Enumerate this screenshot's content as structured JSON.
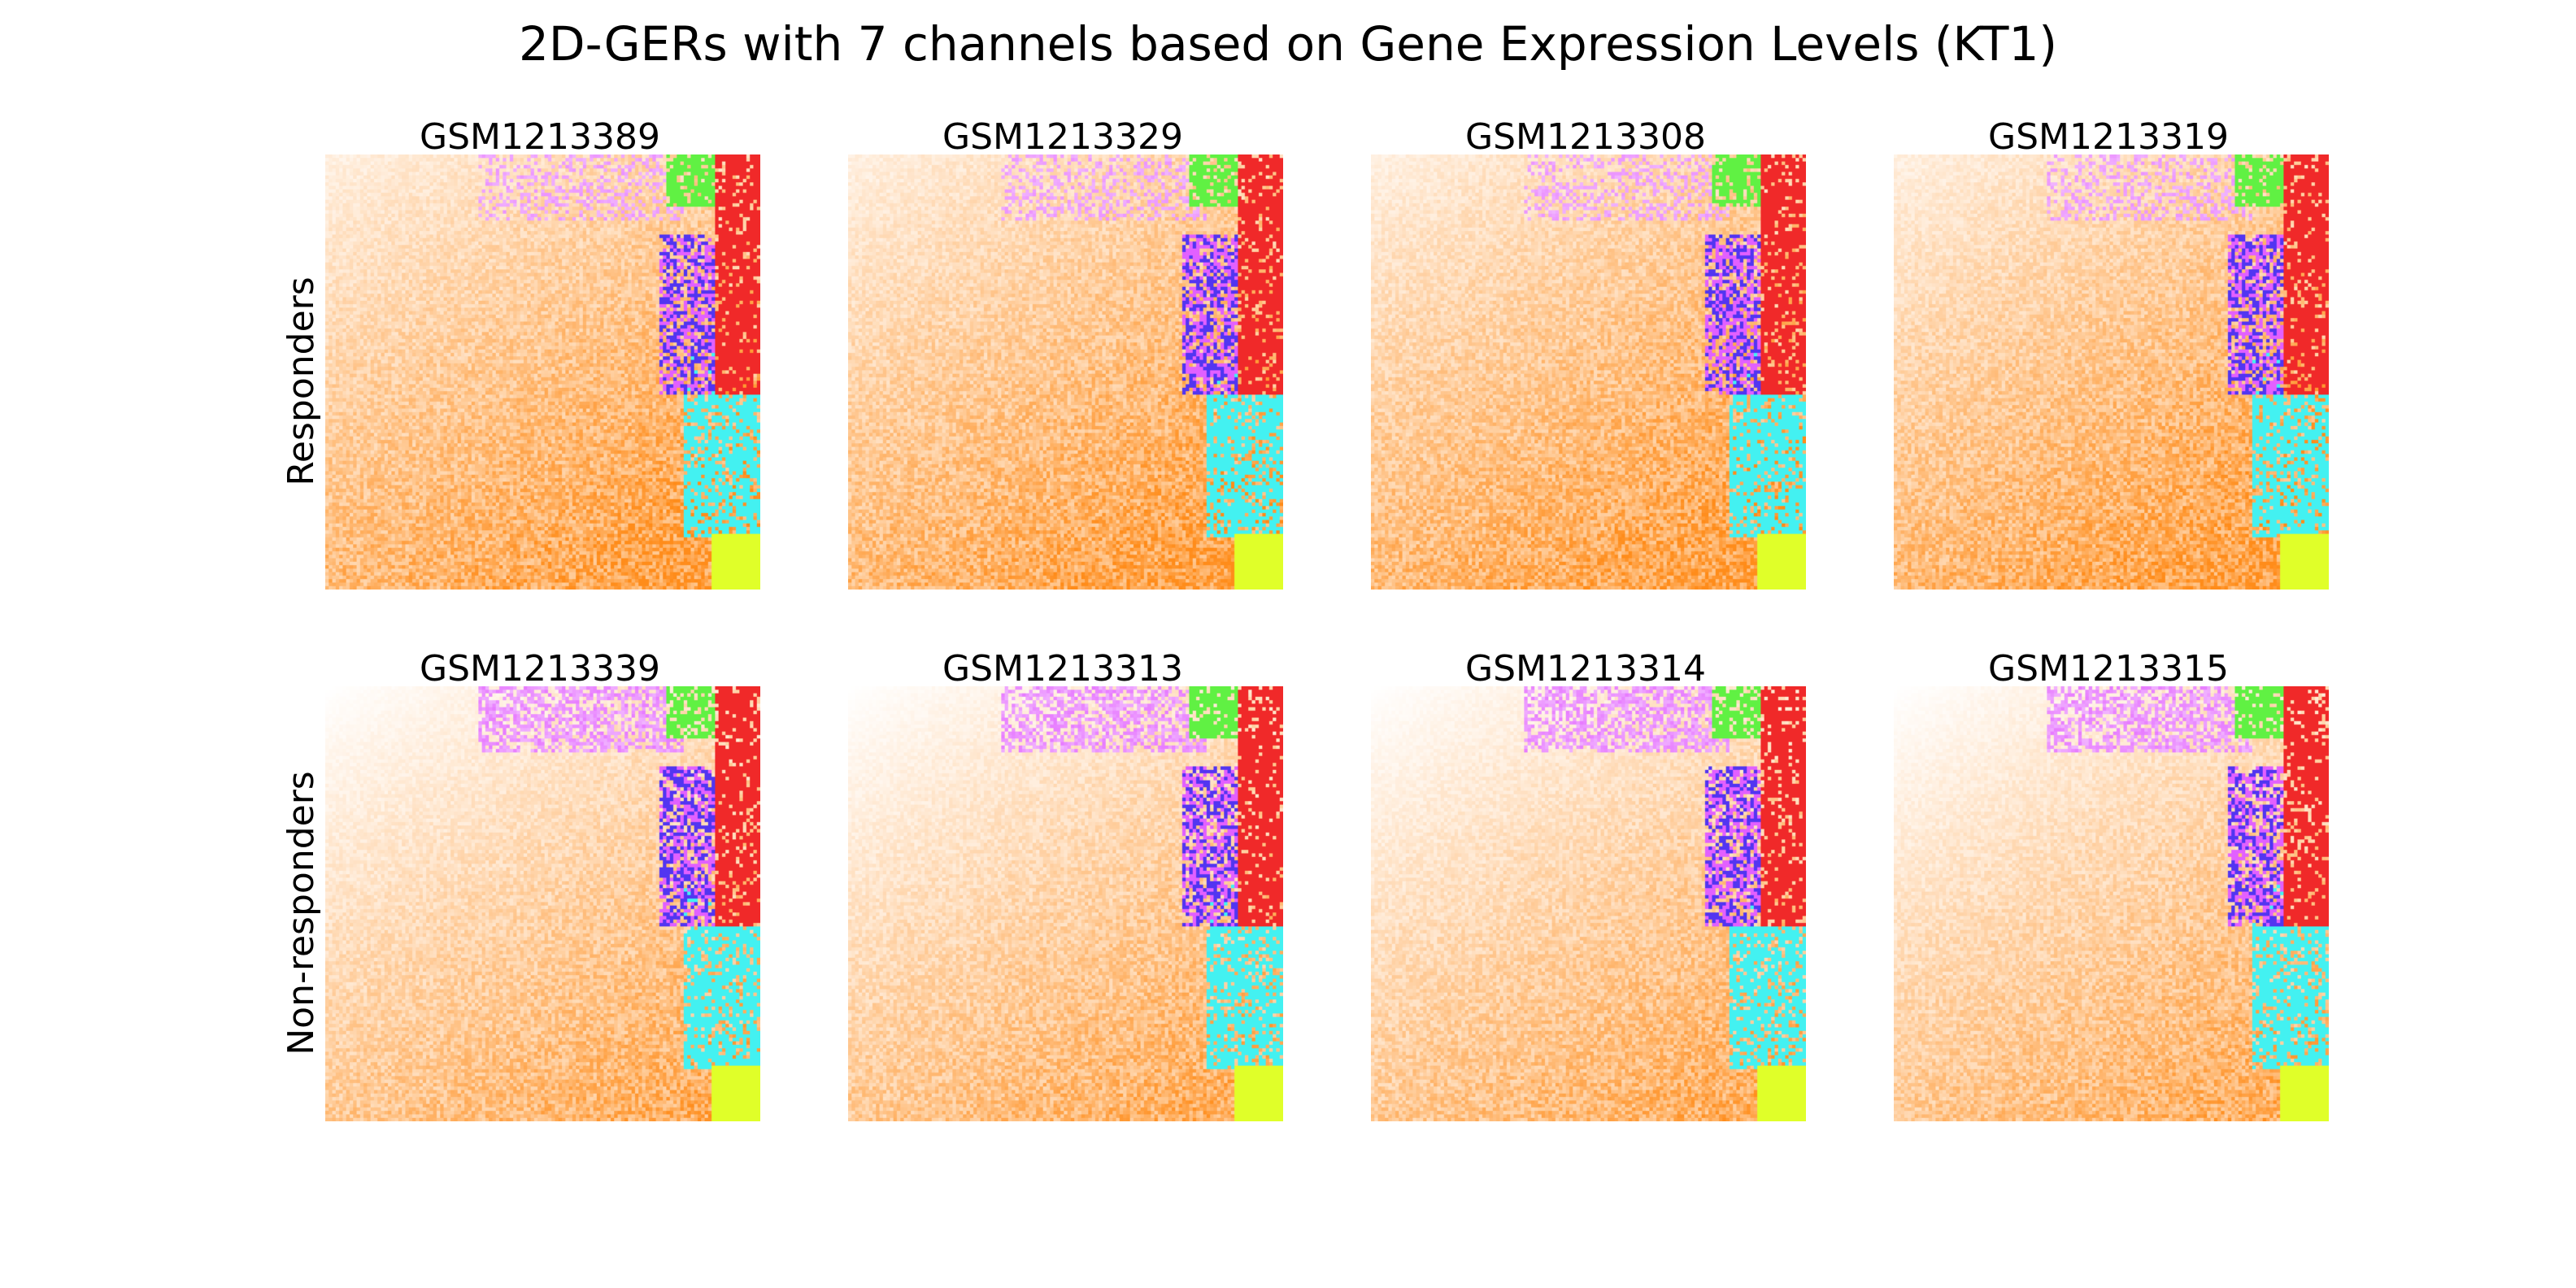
{
  "chart_data": {
    "type": "heatmap",
    "title": "2D-GERs with 7 channels based on Gene Expression Levels (KT1)",
    "rows": [
      {
        "label": "Responders",
        "samples": [
          "GSM1213389",
          "GSM1213329",
          "GSM1213308",
          "GSM1213319"
        ]
      },
      {
        "label": "Non-responders",
        "samples": [
          "GSM1213339",
          "GSM1213313",
          "GSM1213314",
          "GSM1213315"
        ]
      }
    ],
    "channel_colors": {
      "orange": "#ff8c1a",
      "magenta": "#dd44ff",
      "green": "#44ee22",
      "red": "#ee1111",
      "blue": "#3311ee",
      "cyan": "#22eeee",
      "yellow": "#ddff11"
    },
    "grid": false,
    "axes_visible": false
  }
}
